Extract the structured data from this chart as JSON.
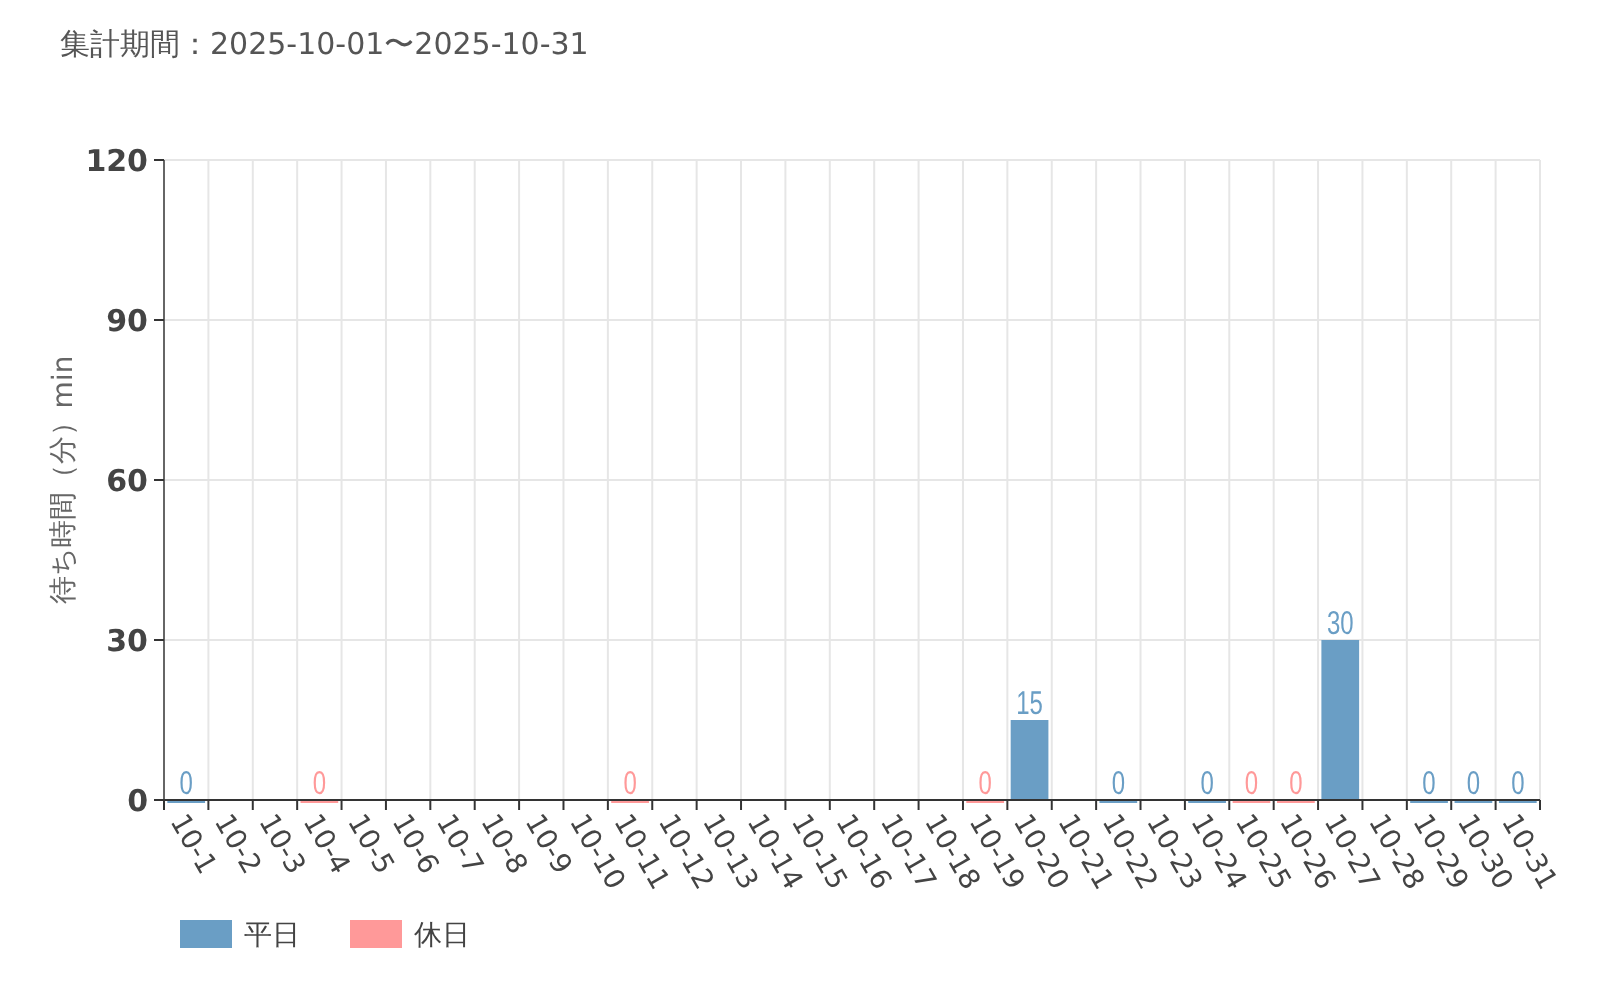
{
  "chart_data": {
    "type": "bar",
    "title": "集計期間：2025-10-01〜2025-10-31",
    "ylabel": "待ち時間（分）min",
    "categories": [
      "10-1",
      "10-2",
      "10-3",
      "10-4",
      "10-5",
      "10-6",
      "10-7",
      "10-8",
      "10-9",
      "10-10",
      "10-11",
      "10-12",
      "10-13",
      "10-14",
      "10-15",
      "10-16",
      "10-17",
      "10-18",
      "10-19",
      "10-20",
      "10-21",
      "10-22",
      "10-23",
      "10-24",
      "10-25",
      "10-26",
      "10-27",
      "10-28",
      "10-29",
      "10-30",
      "10-31"
    ],
    "series": [
      {
        "name": "平日",
        "color": "#6a9ec5",
        "values": [
          0,
          null,
          null,
          null,
          null,
          null,
          null,
          null,
          null,
          null,
          null,
          null,
          null,
          null,
          null,
          null,
          null,
          null,
          null,
          15,
          null,
          0,
          null,
          0,
          null,
          null,
          30,
          null,
          0,
          0,
          0
        ]
      },
      {
        "name": "休日",
        "color": "#ff9999",
        "values": [
          null,
          null,
          null,
          0,
          null,
          null,
          null,
          null,
          null,
          null,
          0,
          null,
          null,
          null,
          null,
          null,
          null,
          null,
          0,
          null,
          null,
          null,
          null,
          null,
          0,
          0,
          null,
          null,
          null,
          null,
          null
        ]
      }
    ],
    "stacked": true,
    "ylim": [
      0,
      120
    ],
    "yticks": [
      0,
      30,
      60,
      90,
      120
    ],
    "grid": true,
    "data_labels": true,
    "legend": "bottom left"
  }
}
